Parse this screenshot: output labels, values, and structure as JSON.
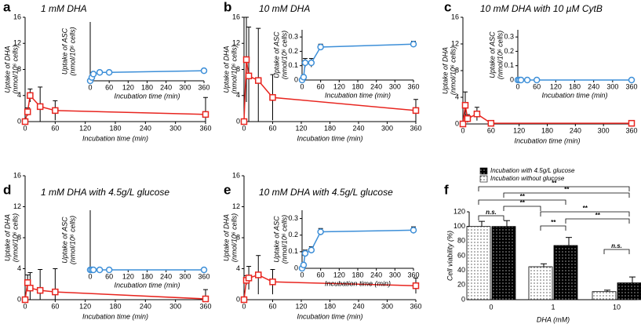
{
  "chart_data": [
    {
      "type": "line",
      "panel": "a",
      "title": "1 mM DHA",
      "xlabel": "Incubation time (min)",
      "ylabel": [
        "Uptake of DHA",
        "(nmol/10⁶ cells)"
      ],
      "x": [
        0,
        5,
        10,
        30,
        60,
        360
      ],
      "xlim": [
        0,
        360
      ],
      "xticks": [
        0,
        60,
        120,
        180,
        240,
        300,
        360
      ],
      "ylim": [
        0,
        16
      ],
      "yticks": [
        0,
        4,
        8,
        12,
        16
      ],
      "series": [
        {
          "color": "#e8251f",
          "values": [
            0,
            1.5,
            4,
            2.3,
            1.7,
            1.1
          ],
          "errors": [
            0,
            0.6,
            1,
            3,
            1.5,
            2.6
          ]
        }
      ],
      "inset": {
        "xlabel": "Incubation time (min)",
        "ylabel": [
          "Uptake of ASC",
          "(nmol/10⁶ cells)"
        ],
        "x": [
          0,
          5,
          10,
          30,
          60,
          360
        ],
        "xlim": [
          0,
          360
        ],
        "xticks": [
          0,
          60,
          120,
          180,
          240,
          300,
          360
        ],
        "ylim": [
          0,
          0.35
        ],
        "color": "#3d8fd8",
        "values": [
          0,
          0.02,
          0.04,
          0.05,
          0.05,
          0.06
        ],
        "errors": [
          0,
          0,
          0,
          0,
          0,
          0
        ]
      }
    },
    {
      "type": "line",
      "panel": "b",
      "title": "10 mM DHA",
      "xlabel": "Incubation time (min)",
      "ylabel": [
        "Uptake of DHA",
        "(nmol/10⁶ cells)"
      ],
      "x": [
        0,
        5,
        10,
        30,
        60,
        360
      ],
      "xlim": [
        0,
        360
      ],
      "xticks": [
        0,
        60,
        120,
        180,
        240,
        300,
        360
      ],
      "ylim": [
        0,
        16
      ],
      "yticks": [
        0,
        4,
        8,
        12,
        16
      ],
      "series": [
        {
          "color": "#e8251f",
          "values": [
            0,
            9.5,
            7,
            6.3,
            3.7,
            1.7
          ],
          "errors": [
            0,
            6.5,
            7.5,
            8,
            3.5,
            1.7
          ]
        }
      ],
      "inset": {
        "xlabel": "Incubation time (min)",
        "ylabel": [
          "Uptake of ASC",
          "(nmol/10⁶ cells)"
        ],
        "x": [
          0,
          5,
          10,
          30,
          60,
          360
        ],
        "xlim": [
          0,
          360
        ],
        "xticks": [
          0,
          60,
          120,
          180,
          240,
          300,
          360
        ],
        "ylim": [
          0,
          0.35
        ],
        "yticks": [
          0,
          0.1,
          0.2,
          0.3
        ],
        "color": "#3d8fd8",
        "values": [
          0,
          0.02,
          0.12,
          0.12,
          0.23,
          0.25
        ],
        "errors": [
          0,
          0.01,
          0.03,
          0.03,
          0.02,
          0.02
        ]
      }
    },
    {
      "type": "line",
      "panel": "c",
      "title": "10 mM DHA with 10 µM CytB",
      "xlabel": "Incubation time (min)",
      "ylabel": [
        "Uptake of DHA",
        "(nmol/10⁶ cells)"
      ],
      "x": [
        0,
        5,
        10,
        30,
        60,
        360
      ],
      "xlim": [
        0,
        360
      ],
      "xticks": [
        0,
        60,
        120,
        180,
        240,
        300,
        360
      ],
      "ylim": [
        0,
        16
      ],
      "yticks": [
        0,
        4,
        8,
        12,
        16
      ],
      "series": [
        {
          "color": "#e8251f",
          "values": [
            0,
            2.8,
            0.8,
            1.5,
            0.1,
            0.1
          ],
          "errors": [
            0,
            2,
            0.6,
            1,
            0.2,
            0.4
          ]
        }
      ],
      "inset": {
        "xlabel": "Incubation time (min)",
        "ylabel": [
          "Uptake of ASC",
          "(nmol/10⁶ cells)"
        ],
        "x": [
          0,
          5,
          10,
          30,
          60,
          360
        ],
        "xlim": [
          0,
          360
        ],
        "xticks": [
          0,
          60,
          120,
          180,
          240,
          300,
          360
        ],
        "ylim": [
          0,
          0.35
        ],
        "yticks": [
          0,
          0.1,
          0.2,
          0.3
        ],
        "color": "#3d8fd8",
        "values": [
          0,
          0,
          0,
          0,
          0,
          0
        ],
        "errors": [
          0,
          0,
          0,
          0,
          0,
          0
        ]
      }
    },
    {
      "type": "line",
      "panel": "d",
      "title": "1 mM DHA with 4.5g/L glucose",
      "xlabel": "Incubation time (min)",
      "ylabel": [
        "Uptake of DHA",
        "(nmol/10⁶ cells)"
      ],
      "x": [
        0,
        5,
        10,
        30,
        60,
        360
      ],
      "xlim": [
        0,
        360
      ],
      "xticks": [
        0,
        60,
        120,
        180,
        240,
        300,
        360
      ],
      "ylim": [
        0,
        16
      ],
      "yticks": [
        0,
        4,
        8,
        12,
        16
      ],
      "series": [
        {
          "color": "#e8251f",
          "values": [
            0,
            2.2,
            1.5,
            1.2,
            1,
            0.1
          ],
          "errors": [
            0,
            1,
            2,
            2.7,
            3,
            1.2
          ]
        }
      ],
      "inset": {
        "xlabel": "Incubation time (min)",
        "ylabel": [
          "Uptake of ASC",
          "(nmol/10⁶ cells)"
        ],
        "x": [
          0,
          5,
          10,
          30,
          60,
          360
        ],
        "xlim": [
          0,
          360
        ],
        "xticks": [
          0,
          60,
          120,
          180,
          240,
          300,
          360
        ],
        "ylim": [
          0,
          0.35
        ],
        "color": "#3d8fd8",
        "values": [
          0,
          0,
          0,
          0,
          0,
          0
        ],
        "errors": [
          0,
          0,
          0,
          0,
          0,
          0
        ]
      }
    },
    {
      "type": "line",
      "panel": "e",
      "title": "10 mM DHA with 4.5g/L glucose",
      "xlabel": "Incubation time (min)",
      "ylabel": [
        "Uptake of DHA",
        "(nmol/10⁶ cells)"
      ],
      "x": [
        0,
        5,
        10,
        30,
        60,
        360
      ],
      "xlim": [
        0,
        360
      ],
      "xticks": [
        0,
        60,
        120,
        180,
        240,
        300,
        360
      ],
      "ylim": [
        0,
        16
      ],
      "yticks": [
        0,
        4,
        8,
        12,
        16
      ],
      "series": [
        {
          "color": "#e8251f",
          "values": [
            0,
            2.5,
            2.8,
            3.2,
            2.3,
            1.8
          ],
          "errors": [
            0,
            0.6,
            1.5,
            2.5,
            1.6,
            1
          ]
        }
      ],
      "inset": {
        "xlabel": "Incubation time (min)",
        "ylabel": [
          "Uptake of ASC",
          "(nmol/10⁶ cells)"
        ],
        "x": [
          0,
          5,
          10,
          30,
          60,
          360
        ],
        "xlim": [
          0,
          360
        ],
        "xticks": [
          0,
          60,
          120,
          180,
          240,
          300,
          360
        ],
        "ylim": [
          0,
          0.35
        ],
        "yticks": [
          0,
          0.1,
          0.2,
          0.3
        ],
        "color": "#3d8fd8",
        "values": [
          0,
          0.02,
          0.09,
          0.11,
          0.22,
          0.23
        ],
        "errors": [
          0,
          0.01,
          0.02,
          0.02,
          0.02,
          0.02
        ]
      }
    },
    {
      "type": "bar",
      "panel": "f",
      "xlabel": "DHA (mM)",
      "ylabel": "Cell viability (%)",
      "categories": [
        "0",
        "1",
        "10"
      ],
      "ylim": [
        0,
        120
      ],
      "yticks": [
        0,
        20,
        40,
        60,
        80,
        100,
        120
      ],
      "series": [
        {
          "name": "Incubation with 4.5g/L glucose",
          "color": "#000000",
          "values": [
            100,
            74,
            23
          ],
          "errors": [
            8,
            11,
            8
          ]
        },
        {
          "name": "Incubation without glucose",
          "color": "#ffffff",
          "values": [
            100,
            45,
            11
          ],
          "errors": [
            7,
            4,
            2
          ]
        }
      ],
      "annotations": [
        "n.s.",
        "**",
        "**",
        "**",
        "**",
        "**",
        "**",
        "**",
        "n.s."
      ]
    }
  ]
}
